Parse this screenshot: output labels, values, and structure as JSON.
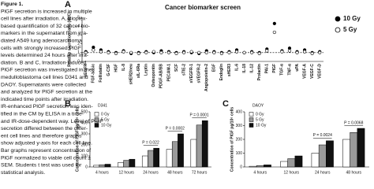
{
  "caption": {
    "label": "Figure 1.",
    "lines": [
      "PlGF secretion is increased in multiple",
      "cell lines after irradiation. A, Bioplex-",
      "based quantification of 32 cancer bio-",
      "markers in the supernatant from irra-",
      "diated A549 lung adenocarcinoma",
      "cells with strongly increased PlGF",
      "levels determined 24 hours after irra-",
      "diation. B and C, Irradiation-induced",
      "PlGF secretion was investigated in the",
      "medulloblastoma cell lines D341 and",
      "DAOY. Supernatants were collected",
      "and analyzed for PlGF secretion at the",
      "indicated time points after irradiation.",
      "IR-enhanced PlGF secretion was iden-",
      "tified in the CM by ELISA in a time-",
      "and IR-dose-dependent way. Level of PlGF",
      "secretion differed between the differ-",
      "ent cell lines and therefore graphs",
      "show adjusted y-axis for each cell line.",
      "Bar graphs represent concentration of",
      "PlGF normalized to viable cell count ±",
      "SEM. Students t test was used for",
      "statistical analysis."
    ]
  },
  "chart_data": [
    {
      "type": "dot",
      "panel": "A",
      "title": "Cancer biomarker screen",
      "y_label": "Relative secretion ratio (IR/C)",
      "categories": [
        "sEGFR",
        "FGF-basic",
        "Follistatin",
        "G-CSF",
        "HGF",
        "IL-8",
        "sHER2/neu",
        "sIL-6Ra",
        "Leptin",
        "Osteopontin",
        "PDGF-AB/BB",
        "PECAM-1",
        "SCF",
        "sTIE-2",
        "sVEGFR-1",
        "sVEGFR-2",
        "Angiopoietin-2",
        "EGF",
        "Endoglin",
        "sHER3",
        "IL-6",
        "IL-18",
        "IL-12",
        "Prolactin",
        "PAI-1",
        "PlGF",
        "TGF-α",
        "TNF-α",
        "uPA",
        "VEGF-A",
        "VEGF-C",
        "VEGF-D"
      ],
      "series": [
        {
          "name": "10 Gy",
          "color": "#000000",
          "marker": "filled",
          "values": [
            1.1,
            1.6,
            1.3,
            1.1,
            1.0,
            1.2,
            0.9,
            1.0,
            1.1,
            1.0,
            1.2,
            1.1,
            1.0,
            1.1,
            1.0,
            0.9,
            1.2,
            1.1,
            1.0,
            1.1,
            1.3,
            1.0,
            1.1,
            1.0,
            1.4,
            4.3,
            1.2,
            1.5,
            1.1,
            1.3,
            1.0,
            1.1
          ]
        },
        {
          "name": "5 Gy",
          "color": "#000000",
          "marker": "open",
          "values": [
            1.0,
            1.3,
            1.1,
            1.0,
            0.9,
            1.1,
            1.0,
            0.9,
            1.0,
            1.1,
            1.0,
            1.0,
            0.9,
            1.0,
            1.1,
            1.0,
            1.0,
            1.0,
            0.9,
            1.0,
            1.1,
            1.0,
            1.0,
            0.9,
            1.2,
            3.3,
            1.1,
            1.2,
            1.0,
            1.1,
            0.9,
            1.0
          ]
        }
      ],
      "ylim": [
        0,
        5
      ],
      "yticks": [
        0,
        1,
        2,
        3,
        4,
        5
      ],
      "reference_line": 1,
      "legend": "top-right"
    },
    {
      "type": "bar",
      "panel": "B",
      "title": "D341",
      "y_label": "Concentration of PlGF pg/10⁶ cells",
      "categories": [
        "4 hours",
        "12 hours",
        "24 hours",
        "48 hours",
        "72 hours"
      ],
      "series": [
        {
          "name": "0 Gy",
          "color": "#ffffff",
          "values": [
            15,
            40,
            100,
            160,
            250
          ]
        },
        {
          "name": "5 Gy",
          "color": "#9a9a9a",
          "values": [
            20,
            60,
            150,
            230,
            380
          ]
        },
        {
          "name": "10 Gy",
          "color": "#111111",
          "values": [
            25,
            70,
            170,
            300,
            420
          ]
        }
      ],
      "ylim": [
        0,
        500
      ],
      "yticks": [
        0,
        100,
        200,
        300,
        400,
        500
      ],
      "legend": "top-left",
      "annotations": [
        {
          "label": "P = 0.022",
          "category": "24 hours"
        },
        {
          "label": "P = 0.0002",
          "category": "48 hours"
        },
        {
          "label": "P = 0.0001",
          "category": "72 hours"
        }
      ]
    },
    {
      "type": "bar",
      "panel": "C",
      "title": "DAOY",
      "y_label": "Concentration of PlGF pg/10⁶ cells",
      "categories": [
        "4 hours",
        "12 hours",
        "24 hours",
        "48 hours"
      ],
      "series": [
        {
          "name": "0 Gy",
          "color": "#ffffff",
          "values": [
            5,
            40,
            100,
            200
          ]
        },
        {
          "name": "5 Gy",
          "color": "#9a9a9a",
          "values": [
            10,
            60,
            160,
            250
          ]
        },
        {
          "name": "10 Gy",
          "color": "#111111",
          "values": [
            15,
            80,
            190,
            280
          ]
        }
      ],
      "ylim": [
        0,
        400
      ],
      "yticks": [
        0,
        100,
        200,
        300,
        400
      ],
      "legend": "top-left",
      "annotations": [
        {
          "label": "P = 0.0024",
          "category": "24 hours"
        },
        {
          "label": "P = 0.0068",
          "category": "48 hours"
        }
      ]
    }
  ]
}
